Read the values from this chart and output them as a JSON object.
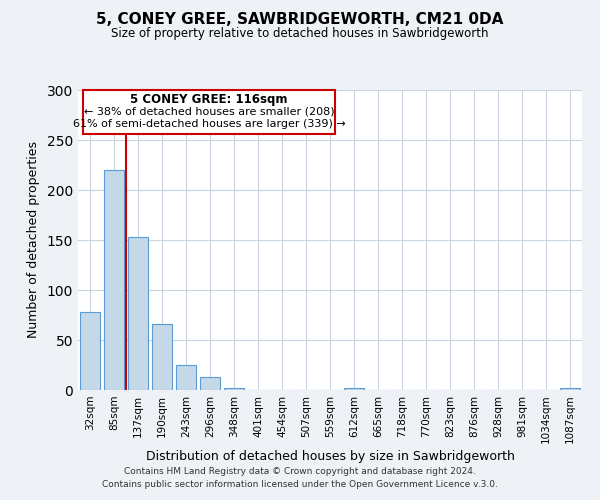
{
  "title": "5, CONEY GREE, SAWBRIDGEWORTH, CM21 0DA",
  "subtitle": "Size of property relative to detached houses in Sawbridgeworth",
  "xlabel": "Distribution of detached houses by size in Sawbridgeworth",
  "ylabel": "Number of detached properties",
  "bar_labels": [
    "32sqm",
    "85sqm",
    "137sqm",
    "190sqm",
    "243sqm",
    "296sqm",
    "348sqm",
    "401sqm",
    "454sqm",
    "507sqm",
    "559sqm",
    "612sqm",
    "665sqm",
    "718sqm",
    "770sqm",
    "823sqm",
    "876sqm",
    "928sqm",
    "981sqm",
    "1034sqm",
    "1087sqm"
  ],
  "bar_values": [
    78,
    220,
    153,
    66,
    25,
    13,
    2,
    0,
    0,
    0,
    0,
    2,
    0,
    0,
    0,
    0,
    0,
    0,
    0,
    0,
    2
  ],
  "bar_color": "#c5d8e8",
  "bar_edgecolor": "#5b9bd5",
  "vline_color": "#cc0000",
  "ylim": [
    0,
    300
  ],
  "yticks": [
    0,
    50,
    100,
    150,
    200,
    250,
    300
  ],
  "annotation_title": "5 CONEY GREE: 116sqm",
  "annotation_line1": "← 38% of detached houses are smaller (208)",
  "annotation_line2": "61% of semi-detached houses are larger (339) →",
  "annotation_box_color": "#cc0000",
  "footer1": "Contains HM Land Registry data © Crown copyright and database right 2024.",
  "footer2": "Contains public sector information licensed under the Open Government Licence v.3.0.",
  "background_color": "#eef2f7",
  "plot_bg_color": "#ffffff",
  "grid_color": "#c8d4e0"
}
